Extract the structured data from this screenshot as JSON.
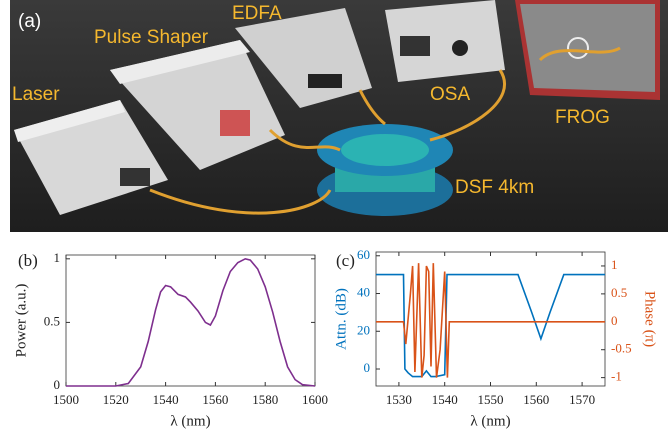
{
  "panel_a": {
    "panel_label": "(a)",
    "labels": [
      "Laser",
      "Pulse Shaper",
      "EDFA",
      "OSA",
      "FROG",
      "DSF 4km"
    ]
  },
  "chart_data": [
    {
      "type": "line",
      "panel_label": "(b)",
      "xlabel": "λ (nm)",
      "ylabel": "Power (a.u.)",
      "xlim": [
        1500,
        1600
      ],
      "xticks": [
        1500,
        1520,
        1540,
        1560,
        1580,
        1600
      ],
      "ylim": [
        0,
        1.03
      ],
      "yticks": [
        0,
        0.5,
        1
      ],
      "x": [
        1500,
        1510,
        1520,
        1525,
        1530,
        1533,
        1536,
        1538,
        1540,
        1542,
        1545,
        1548,
        1550,
        1553,
        1556,
        1558,
        1560,
        1563,
        1566,
        1569,
        1572,
        1574,
        1577,
        1580,
        1583,
        1586,
        1589,
        1592,
        1595,
        1600
      ],
      "series": [
        {
          "color": "#7e2f8e",
          "values": [
            0,
            0,
            0,
            0.02,
            0.15,
            0.35,
            0.6,
            0.74,
            0.79,
            0.78,
            0.72,
            0.7,
            0.66,
            0.59,
            0.5,
            0.48,
            0.55,
            0.75,
            0.9,
            0.97,
            1.0,
            0.99,
            0.92,
            0.78,
            0.58,
            0.35,
            0.15,
            0.05,
            0.01,
            0
          ]
        }
      ]
    },
    {
      "type": "line",
      "panel_label": "(c)",
      "xlabel": "λ (nm)",
      "ylabel": "Attn. (dB)",
      "y2label": "Phase (π)",
      "xlim": [
        1525,
        1575
      ],
      "xticks": [
        1530,
        1540,
        1550,
        1560,
        1570
      ],
      "ylim": [
        -9,
        62
      ],
      "yticks": [
        0,
        20,
        40,
        60
      ],
      "y2lim": [
        -1.15,
        1.25
      ],
      "y2ticks": [
        -1,
        -0.5,
        0,
        0.5,
        1
      ],
      "series": [
        {
          "color": "#0072bd",
          "x": [
            1525,
            1531,
            1531.3,
            1532,
            1533,
            1535,
            1536,
            1537,
            1538,
            1540,
            1540.5,
            1541,
            1556,
            1559,
            1561,
            1563,
            1566,
            1575
          ],
          "values": [
            50,
            50,
            0,
            -2,
            -4,
            -4,
            -1,
            -4,
            -4,
            -3,
            50,
            50,
            50,
            30,
            16,
            30,
            50,
            50
          ]
        },
        {
          "color": "#d95319",
          "axis": "y2",
          "x": [
            1525,
            1531,
            1531.5,
            1532.5,
            1533,
            1533.5,
            1534.3,
            1535,
            1535.5,
            1536,
            1536.5,
            1537,
            1537.5,
            1538.2,
            1539,
            1540,
            1540.6,
            1541,
            1575
          ],
          "values": [
            0,
            0,
            -0.4,
            0.5,
            1,
            -0.9,
            1.05,
            -1,
            -0.6,
            1,
            0.9,
            -0.8,
            1.05,
            -1,
            -0.5,
            0.9,
            -1,
            0,
            0
          ]
        }
      ]
    }
  ]
}
